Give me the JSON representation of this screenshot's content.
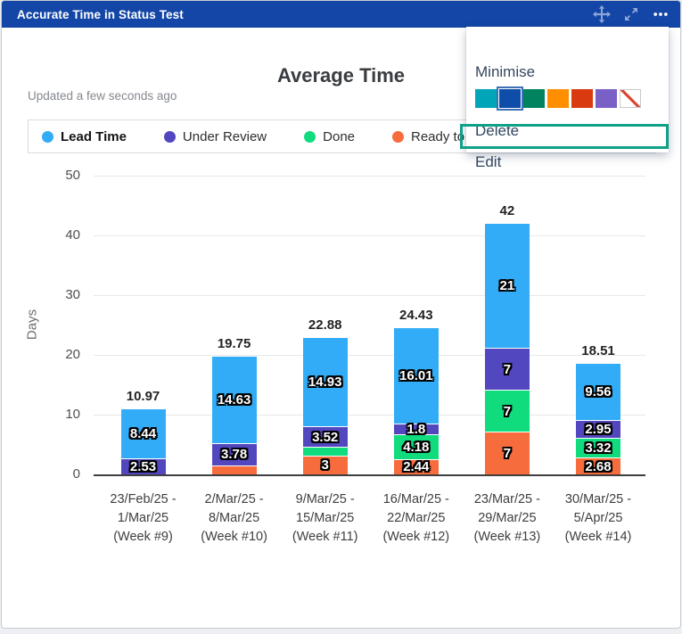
{
  "window": {
    "title": "Accurate Time in Status Test"
  },
  "header_icons": [
    "move-icon",
    "expand-icon",
    "more-icon"
  ],
  "widget": {
    "title": "Average Time",
    "updated": "Updated a few seconds ago"
  },
  "menu": {
    "minimise_label": "Minimise",
    "delete_label": "Delete",
    "edit_label": "Edit",
    "highlight_color": "#10A189",
    "swatches": [
      {
        "color": "#00A5B8",
        "selected": false
      },
      {
        "color": "#0E4DA8",
        "selected": true
      },
      {
        "color": "#00835E",
        "selected": false
      },
      {
        "color": "#FF8E00",
        "selected": false
      },
      {
        "color": "#DA3A10",
        "selected": false
      },
      {
        "color": "#7A5FC7",
        "selected": false
      },
      {
        "color": "none",
        "selected": false
      }
    ]
  },
  "chart_data": {
    "type": "bar",
    "stacked": true,
    "title": "Average Time",
    "ylabel": "Days",
    "ylim": [
      0,
      50
    ],
    "yticks": [
      0,
      10,
      20,
      30,
      40,
      50
    ],
    "ytick_step": 10,
    "grid": true,
    "legend_position": "top",
    "categories": [
      [
        "23/Feb/25 -",
        "1/Mar/25",
        "(Week #9)"
      ],
      [
        "2/Mar/25 -",
        "8/Mar/25",
        "(Week #10)"
      ],
      [
        "9/Mar/25 -",
        "15/Mar/25",
        "(Week #11)"
      ],
      [
        "16/Mar/25 -",
        "22/Mar/25",
        "(Week #12)"
      ],
      [
        "23/Mar/25 -",
        "29/Mar/25",
        "(Week #13)"
      ],
      [
        "30/Mar/25 -",
        "5/Apr/25",
        "(Week #14)"
      ]
    ],
    "series": [
      {
        "name": "Lead Time",
        "color": "#32ACF6",
        "bold": true,
        "values": [
          8.44,
          14.63,
          14.93,
          16.01,
          21,
          9.56
        ],
        "labels": [
          "8.44",
          "14.63",
          "14.93",
          "16.01",
          "21",
          "9.56"
        ]
      },
      {
        "name": "Under Review",
        "color": "#5347BF",
        "bold": false,
        "values": [
          2.53,
          3.78,
          3.52,
          1.8,
          7,
          2.95
        ],
        "labels": [
          "2.53",
          "3.78",
          "3.52",
          "1.8",
          "7",
          "2.95"
        ]
      },
      {
        "name": "Done",
        "color": "#10DC7E",
        "bold": false,
        "values": [
          0,
          0,
          1.43,
          4.18,
          7,
          3.32
        ],
        "labels": [
          "",
          "",
          "",
          "4.18",
          "7",
          "3.32"
        ]
      },
      {
        "name": "Ready to rele",
        "color": "#F66C3C",
        "bold": false,
        "values": [
          0,
          1.34,
          3,
          2.44,
          7,
          2.68
        ],
        "labels": [
          "",
          "",
          "3",
          "2.44",
          "7",
          "2.68"
        ]
      }
    ],
    "stack_order_bottom_to_top": [
      "Ready to rele",
      "Done",
      "Under Review",
      "Lead Time"
    ],
    "totals": [
      "10.97",
      "19.75",
      "22.88",
      "24.43",
      "42",
      "18.51"
    ]
  }
}
